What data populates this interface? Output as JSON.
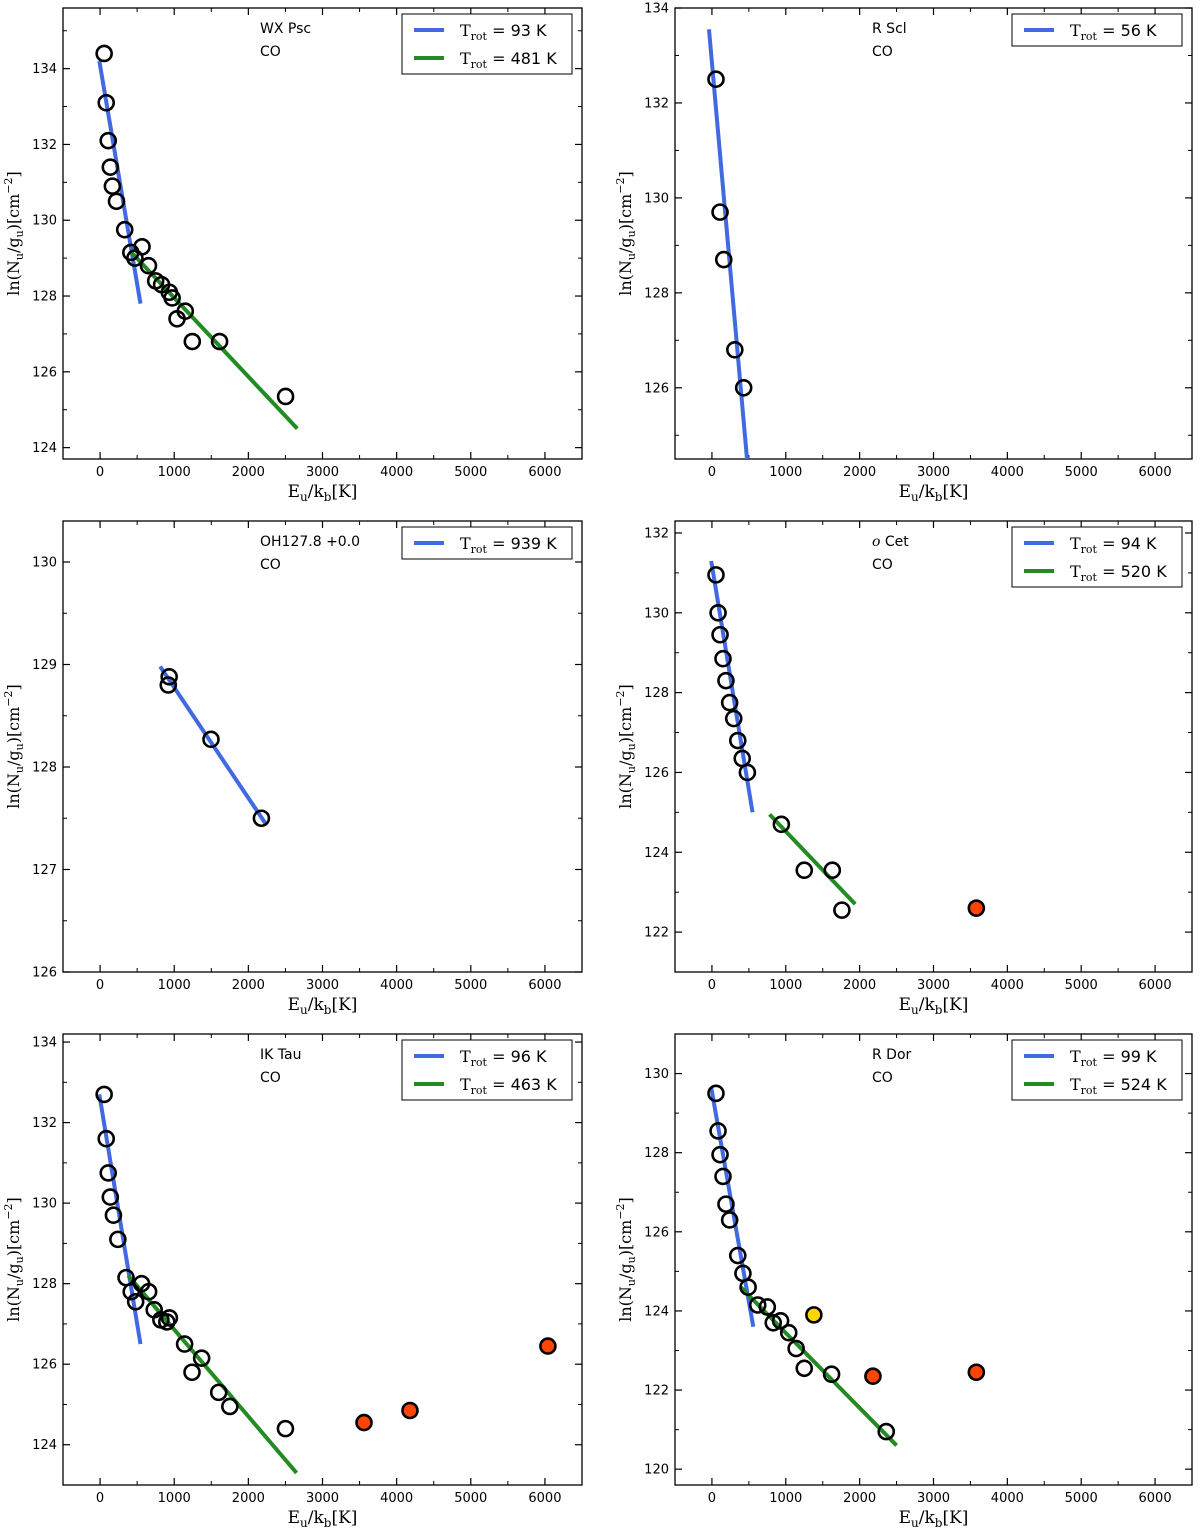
{
  "chart_data": [
    {
      "type": "scatter",
      "star": "WX Psc",
      "molecule": "CO",
      "xlabel": "E_u/k_b[K]",
      "ylabel": "ln(N_u/g_u)[cm^-2]",
      "xlim": [
        -500,
        6500
      ],
      "ylim": [
        123.7,
        135.6
      ],
      "xticks": [
        0,
        1000,
        2000,
        3000,
        4000,
        5000,
        6000
      ],
      "yticks": [
        124,
        126,
        128,
        130,
        132,
        134
      ],
      "legend": [
        {
          "label": "T_rot = 93 K",
          "color": "#4169e1"
        },
        {
          "label": "T_rot = 481 K",
          "color": "#228b22"
        }
      ],
      "fits": [
        {
          "name": "T_rot = 93 K",
          "color": "#4169e1",
          "x": [
            -10,
            545
          ],
          "y": [
            134.2,
            127.8
          ]
        },
        {
          "name": "T_rot = 481 K",
          "color": "#228b22",
          "x": [
            400,
            2660
          ],
          "y": [
            129.2,
            124.5
          ]
        }
      ],
      "points": [
        {
          "x": 55,
          "y": 134.4,
          "fill": "none"
        },
        {
          "x": 83,
          "y": 133.1,
          "fill": "none"
        },
        {
          "x": 110,
          "y": 132.1,
          "fill": "none"
        },
        {
          "x": 138,
          "y": 131.4,
          "fill": "none"
        },
        {
          "x": 166,
          "y": 130.9,
          "fill": "none"
        },
        {
          "x": 221,
          "y": 130.5,
          "fill": "none"
        },
        {
          "x": 332,
          "y": 129.75,
          "fill": "none"
        },
        {
          "x": 415,
          "y": 129.15,
          "fill": "none"
        },
        {
          "x": 470,
          "y": 129.0,
          "fill": "none"
        },
        {
          "x": 566,
          "y": 129.3,
          "fill": "none"
        },
        {
          "x": 653,
          "y": 128.8,
          "fill": "none"
        },
        {
          "x": 750,
          "y": 128.4,
          "fill": "none"
        },
        {
          "x": 830,
          "y": 128.3,
          "fill": "none"
        },
        {
          "x": 934,
          "y": 128.1,
          "fill": "none"
        },
        {
          "x": 972,
          "y": 127.95,
          "fill": "none"
        },
        {
          "x": 1038,
          "y": 127.4,
          "fill": "none"
        },
        {
          "x": 1149,
          "y": 127.6,
          "fill": "none"
        },
        {
          "x": 1244,
          "y": 126.8,
          "fill": "none"
        },
        {
          "x": 1612,
          "y": 126.8,
          "fill": "none"
        },
        {
          "x": 2502,
          "y": 125.35,
          "fill": "none"
        }
      ]
    },
    {
      "type": "scatter",
      "star": "R Scl",
      "molecule": "CO",
      "xlabel": "E_u/k_b[K]",
      "ylabel": "ln(N_u/g_u)[cm^-2]",
      "xlim": [
        -500,
        6500
      ],
      "ylim": [
        124.5,
        134.0
      ],
      "xticks": [
        0,
        1000,
        2000,
        3000,
        4000,
        5000,
        6000
      ],
      "yticks": [
        126,
        128,
        130,
        132,
        134
      ],
      "legend": [
        {
          "label": "T_rot = 56 K",
          "color": "#4169e1"
        }
      ],
      "fits": [
        {
          "name": "T_rot = 56 K",
          "color": "#4169e1",
          "x": [
            -40,
            475
          ],
          "y": [
            133.55,
            124.5
          ]
        }
      ],
      "points": [
        {
          "x": 55,
          "y": 132.5,
          "fill": "none"
        },
        {
          "x": 110,
          "y": 129.7,
          "fill": "none"
        },
        {
          "x": 160,
          "y": 128.7,
          "fill": "none"
        },
        {
          "x": 310,
          "y": 126.8,
          "fill": "none"
        },
        {
          "x": 430,
          "y": 126.0,
          "fill": "none"
        }
      ]
    },
    {
      "type": "scatter",
      "star": "OH127.8 +0.0",
      "molecule": "CO",
      "xlabel": "E_u/k_b[K]",
      "ylabel": "ln(N_u/g_u)[cm^-2]",
      "xlim": [
        -500,
        6500
      ],
      "ylim": [
        126.0,
        130.4
      ],
      "xticks": [
        0,
        1000,
        2000,
        3000,
        4000,
        5000,
        6000
      ],
      "yticks": [
        126,
        127,
        128,
        129,
        130
      ],
      "legend": [
        {
          "label": "T_rot = 939 K",
          "color": "#4169e1"
        }
      ],
      "fits": [
        {
          "name": "T_rot = 939 K",
          "color": "#4169e1",
          "x": [
            810,
            2230
          ],
          "y": [
            128.98,
            127.45
          ]
        }
      ],
      "points": [
        {
          "x": 932,
          "y": 128.88,
          "fill": "none"
        },
        {
          "x": 920,
          "y": 128.8,
          "fill": "none"
        },
        {
          "x": 1496,
          "y": 128.27,
          "fill": "none"
        },
        {
          "x": 2176,
          "y": 127.5,
          "fill": "none"
        }
      ]
    },
    {
      "type": "scatter",
      "star": "o Cet",
      "molecule": "CO",
      "xlabel": "E_u/k_b[K]",
      "ylabel": "ln(N_u/g_u)[cm^-2]",
      "xlim": [
        -500,
        6500
      ],
      "ylim": [
        121.0,
        132.3
      ],
      "xticks": [
        0,
        1000,
        2000,
        3000,
        4000,
        5000,
        6000
      ],
      "yticks": [
        122,
        124,
        126,
        128,
        130,
        132
      ],
      "legend": [
        {
          "label": "T_rot = 94 K",
          "color": "#4169e1"
        },
        {
          "label": "T_rot = 520 K",
          "color": "#228b22"
        }
      ],
      "fits": [
        {
          "name": "T_rot = 94 K",
          "color": "#4169e1",
          "x": [
            -10,
            550
          ],
          "y": [
            131.3,
            125.0
          ]
        },
        {
          "name": "T_rot = 520 K",
          "color": "#228b22",
          "x": [
            780,
            1940
          ],
          "y": [
            124.95,
            122.7
          ]
        }
      ],
      "points": [
        {
          "x": 55,
          "y": 130.95,
          "fill": "none"
        },
        {
          "x": 83,
          "y": 130.0,
          "fill": "none"
        },
        {
          "x": 110,
          "y": 129.45,
          "fill": "none"
        },
        {
          "x": 150,
          "y": 128.85,
          "fill": "none"
        },
        {
          "x": 190,
          "y": 128.3,
          "fill": "none"
        },
        {
          "x": 240,
          "y": 127.75,
          "fill": "none"
        },
        {
          "x": 295,
          "y": 127.35,
          "fill": "none"
        },
        {
          "x": 350,
          "y": 126.8,
          "fill": "none"
        },
        {
          "x": 410,
          "y": 126.35,
          "fill": "none"
        },
        {
          "x": 480,
          "y": 126.0,
          "fill": "none"
        },
        {
          "x": 940,
          "y": 124.7,
          "fill": "none"
        },
        {
          "x": 1250,
          "y": 123.55,
          "fill": "none"
        },
        {
          "x": 1630,
          "y": 123.55,
          "fill": "none"
        },
        {
          "x": 1760,
          "y": 122.55,
          "fill": "none"
        },
        {
          "x": 3580,
          "y": 122.6,
          "fill": "#ff4500"
        }
      ]
    },
    {
      "type": "scatter",
      "star": "IK Tau",
      "molecule": "CO",
      "xlabel": "E_u/k_b[K]",
      "ylabel": "ln(N_u/g_u)[cm^-2]",
      "xlim": [
        -500,
        6500
      ],
      "ylim": [
        123.0,
        134.2
      ],
      "xticks": [
        0,
        1000,
        2000,
        3000,
        4000,
        5000,
        6000
      ],
      "yticks": [
        124,
        126,
        128,
        130,
        132,
        134
      ],
      "legend": [
        {
          "label": "T_rot = 96 K",
          "color": "#4169e1"
        },
        {
          "label": "T_rot = 463 K",
          "color": "#228b22"
        }
      ],
      "fits": [
        {
          "name": "T_rot = 96 K",
          "color": "#4169e1",
          "x": [
            -10,
            545
          ],
          "y": [
            132.7,
            126.5
          ]
        },
        {
          "name": "T_rot = 463 K",
          "color": "#228b22",
          "x": [
            380,
            2650
          ],
          "y": [
            128.2,
            123.3
          ]
        }
      ],
      "points": [
        {
          "x": 55,
          "y": 132.7,
          "fill": "none"
        },
        {
          "x": 83,
          "y": 131.6,
          "fill": "none"
        },
        {
          "x": 110,
          "y": 130.75,
          "fill": "none"
        },
        {
          "x": 138,
          "y": 130.15,
          "fill": "none"
        },
        {
          "x": 180,
          "y": 129.7,
          "fill": "none"
        },
        {
          "x": 240,
          "y": 129.1,
          "fill": "none"
        },
        {
          "x": 350,
          "y": 128.15,
          "fill": "none"
        },
        {
          "x": 420,
          "y": 127.8,
          "fill": "none"
        },
        {
          "x": 480,
          "y": 127.55,
          "fill": "none"
        },
        {
          "x": 560,
          "y": 128.0,
          "fill": "none"
        },
        {
          "x": 655,
          "y": 127.8,
          "fill": "none"
        },
        {
          "x": 730,
          "y": 127.35,
          "fill": "none"
        },
        {
          "x": 820,
          "y": 127.1,
          "fill": "none"
        },
        {
          "x": 900,
          "y": 127.05,
          "fill": "none"
        },
        {
          "x": 935,
          "y": 127.15,
          "fill": "none"
        },
        {
          "x": 1140,
          "y": 126.5,
          "fill": "none"
        },
        {
          "x": 1240,
          "y": 125.8,
          "fill": "none"
        },
        {
          "x": 1370,
          "y": 126.15,
          "fill": "none"
        },
        {
          "x": 1600,
          "y": 125.3,
          "fill": "none"
        },
        {
          "x": 1750,
          "y": 124.95,
          "fill": "none"
        },
        {
          "x": 2500,
          "y": 124.4,
          "fill": "none"
        },
        {
          "x": 3560,
          "y": 124.55,
          "fill": "#ff4500"
        },
        {
          "x": 4180,
          "y": 124.85,
          "fill": "#ff4500"
        },
        {
          "x": 6040,
          "y": 126.45,
          "fill": "#ff4500"
        }
      ]
    },
    {
      "type": "scatter",
      "star": "R Dor",
      "molecule": "CO",
      "xlabel": "E_u/k_b[K]",
      "ylabel": "ln(N_u/g_u)[cm^-2]",
      "xlim": [
        -500,
        6500
      ],
      "ylim": [
        119.6,
        131.0
      ],
      "xticks": [
        0,
        1000,
        2000,
        3000,
        4000,
        5000,
        6000
      ],
      "yticks": [
        120,
        122,
        124,
        126,
        128,
        130
      ],
      "legend": [
        {
          "label": "T_rot = 99 K",
          "color": "#4169e1"
        },
        {
          "label": "T_rot = 524 K",
          "color": "#228b22"
        }
      ],
      "fits": [
        {
          "name": "T_rot = 99 K",
          "color": "#4169e1",
          "x": [
            -10,
            560
          ],
          "y": [
            129.65,
            123.6
          ]
        },
        {
          "name": "T_rot = 524 K",
          "color": "#228b22",
          "x": [
            390,
            2500
          ],
          "y": [
            124.6,
            120.6
          ]
        }
      ],
      "points": [
        {
          "x": 55,
          "y": 129.5,
          "fill": "none"
        },
        {
          "x": 83,
          "y": 128.55,
          "fill": "none"
        },
        {
          "x": 110,
          "y": 127.95,
          "fill": "none"
        },
        {
          "x": 150,
          "y": 127.4,
          "fill": "none"
        },
        {
          "x": 190,
          "y": 126.7,
          "fill": "none"
        },
        {
          "x": 240,
          "y": 126.3,
          "fill": "none"
        },
        {
          "x": 350,
          "y": 125.4,
          "fill": "none"
        },
        {
          "x": 420,
          "y": 124.95,
          "fill": "none"
        },
        {
          "x": 490,
          "y": 124.6,
          "fill": "none"
        },
        {
          "x": 620,
          "y": 124.15,
          "fill": "none"
        },
        {
          "x": 750,
          "y": 124.1,
          "fill": "none"
        },
        {
          "x": 830,
          "y": 123.7,
          "fill": "none"
        },
        {
          "x": 930,
          "y": 123.75,
          "fill": "none"
        },
        {
          "x": 1040,
          "y": 123.45,
          "fill": "none"
        },
        {
          "x": 1140,
          "y": 123.05,
          "fill": "none"
        },
        {
          "x": 1250,
          "y": 122.55,
          "fill": "none"
        },
        {
          "x": 1380,
          "y": 123.9,
          "fill": "#ffd700"
        },
        {
          "x": 1620,
          "y": 122.4,
          "fill": "none"
        },
        {
          "x": 2180,
          "y": 122.35,
          "fill": "#ff4500"
        },
        {
          "x": 2360,
          "y": 120.95,
          "fill": "none"
        },
        {
          "x": 3580,
          "y": 122.45,
          "fill": "#ff4500"
        }
      ]
    }
  ]
}
